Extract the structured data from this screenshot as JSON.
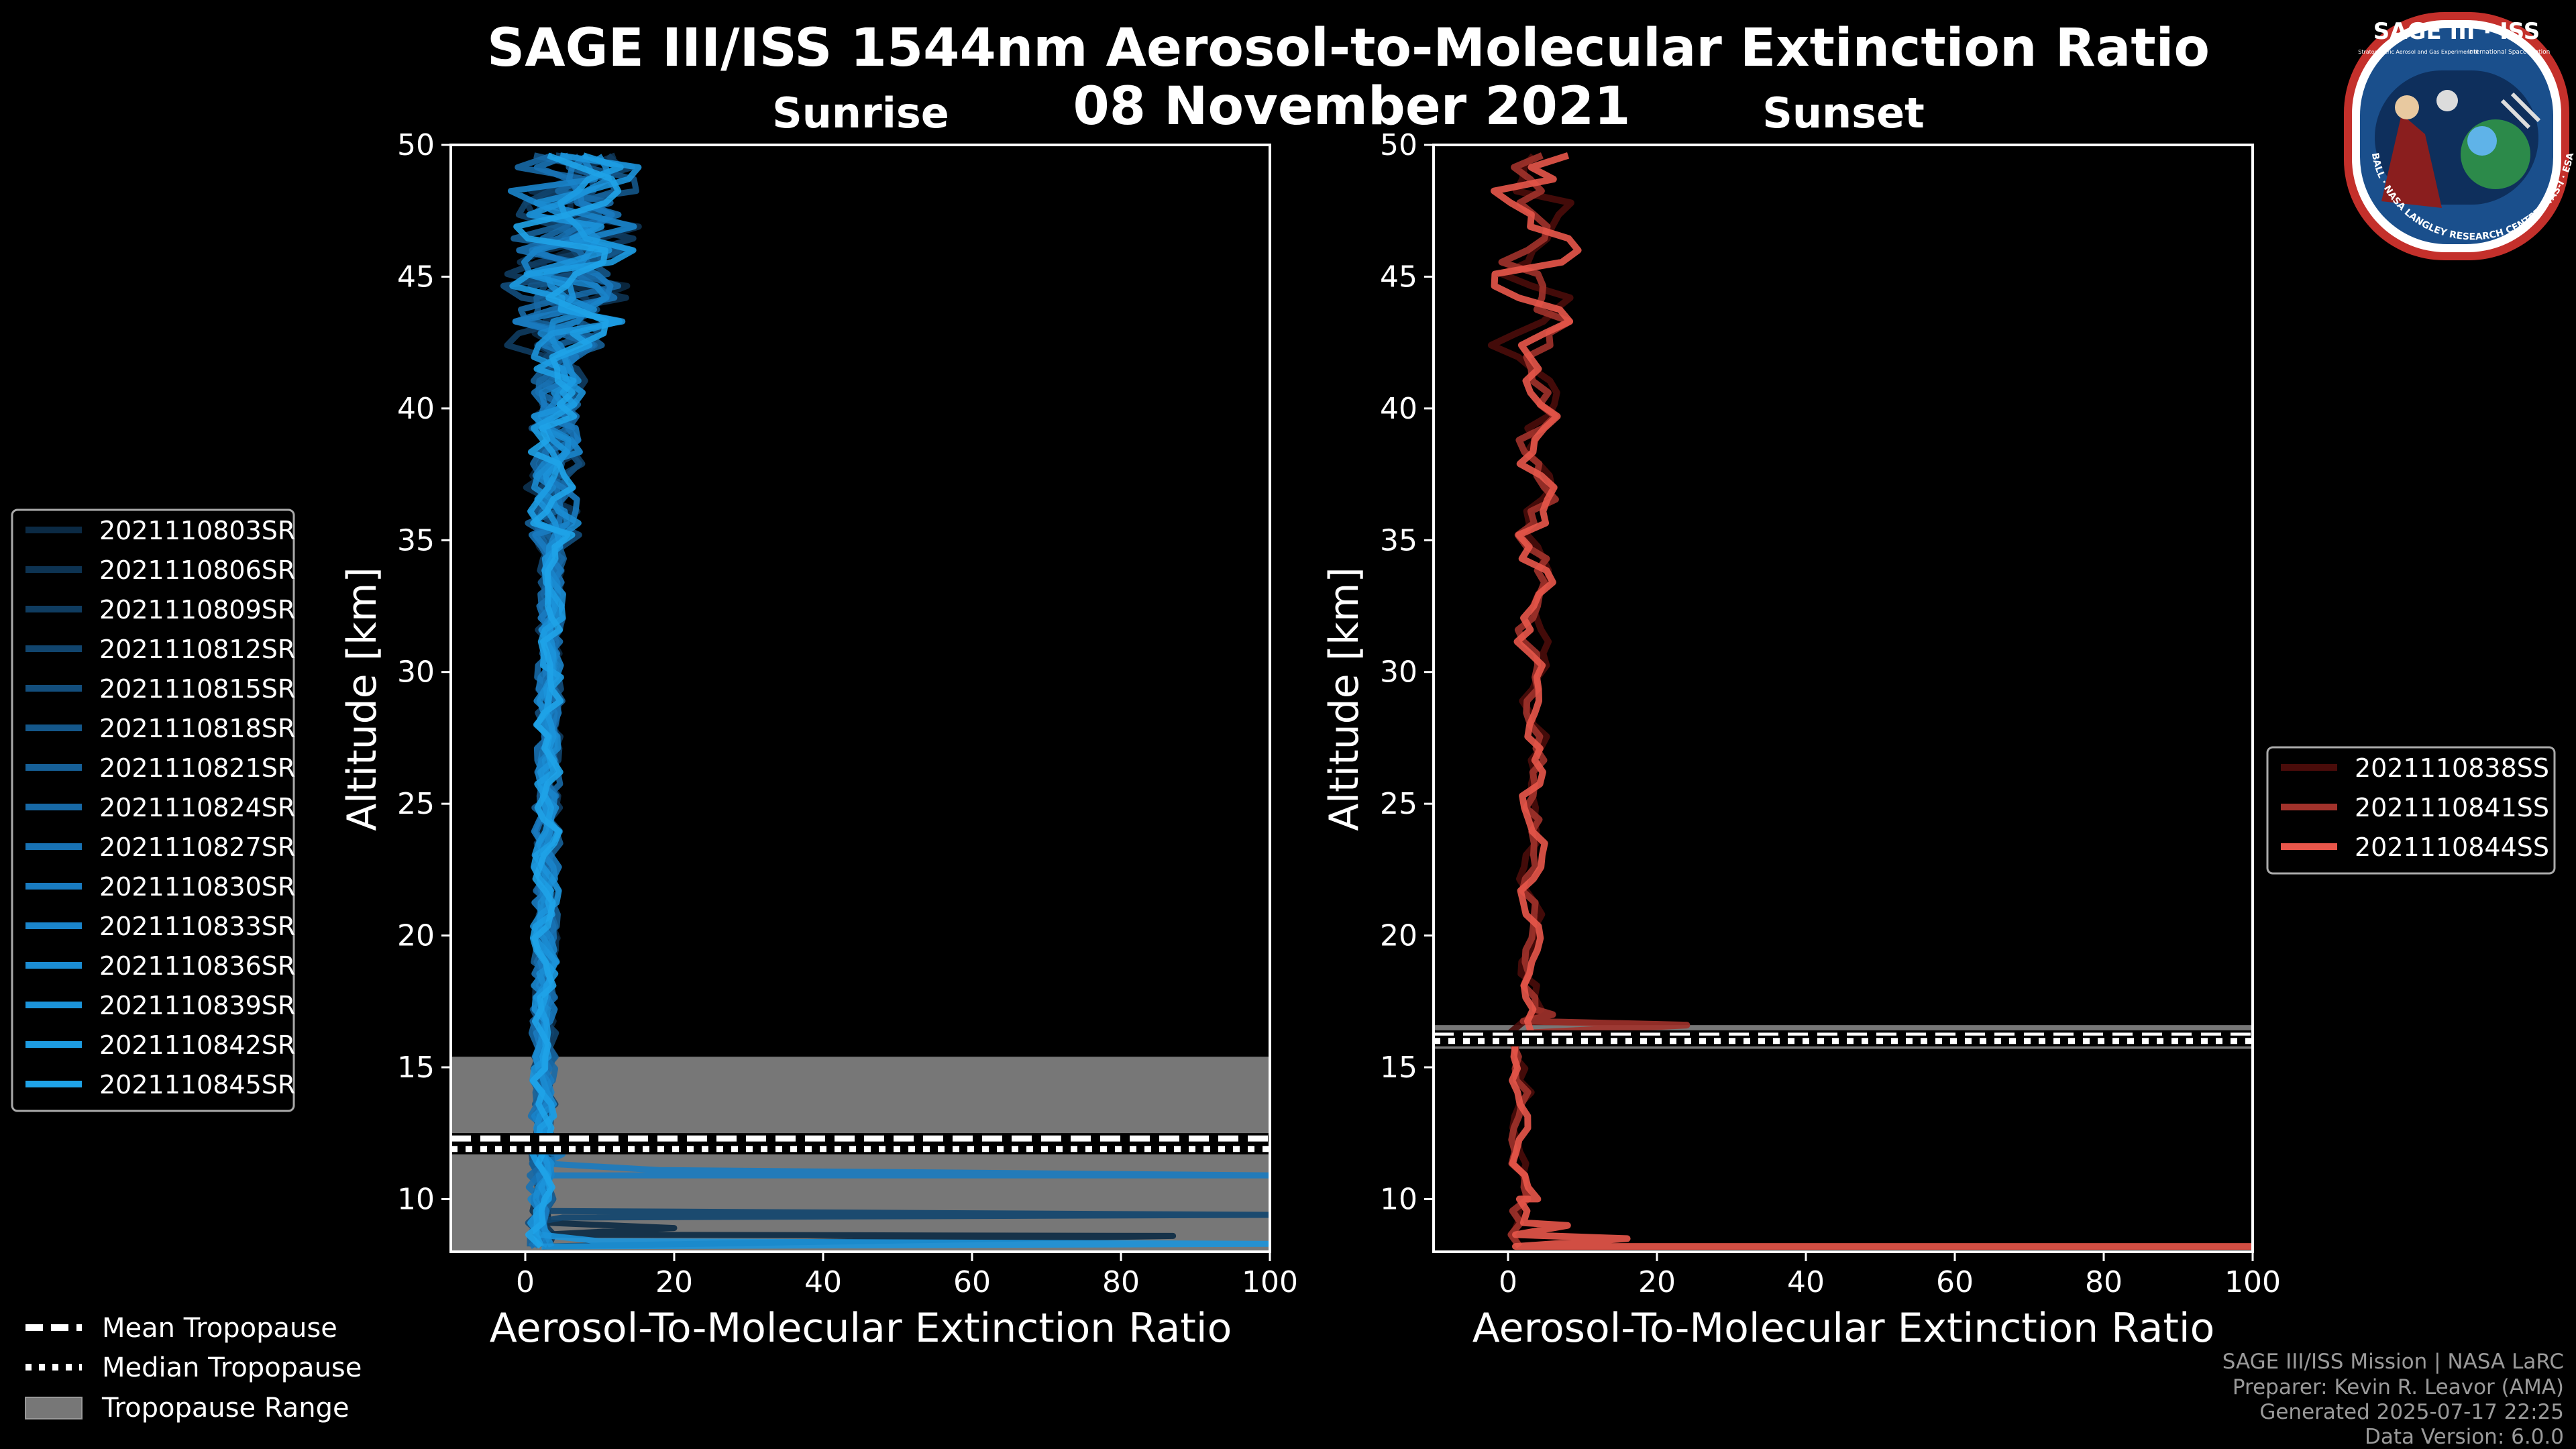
{
  "title": "SAGE III/ISS 1544nm Aerosol-to-Molecular Extinction Ratio",
  "date": "08 November 2021",
  "logo": {
    "name": "SAGE III · ISS",
    "subtitle_left": "Stratospheric Aerosol and Gas Experiment III",
    "subtitle_right": "International Space Station",
    "ring_text": "BALL · NASA LANGLEY RESEARCH CENTER · TAS-I · ESA"
  },
  "colors": {
    "background": "#000000",
    "sunrise_palette": [
      "#0b2a44",
      "#0f3a5e",
      "#135080",
      "#176aa6",
      "#1a86cc",
      "#1fa0e6"
    ],
    "sunset_palette": [
      "#4a0c0a",
      "#a1322b",
      "#e8564a"
    ],
    "tropopause_range": "#777777"
  },
  "legend_tropopause": {
    "mean": "Mean Tropopause",
    "median": "Median Tropopause",
    "range": "Tropopause Range"
  },
  "footer": {
    "line1": "SAGE III/ISS Mission | NASA LaRC",
    "line2": "Preparer: Kevin R. Leavor (AMA)",
    "line3": "Generated 2025-07-17 22:25",
    "line4": "Data Version: 6.0.0"
  },
  "chart_data": [
    {
      "type": "line",
      "title": "Sunrise",
      "xlabel": "Aerosol-To-Molecular Extinction Ratio",
      "ylabel": "Altitude [km]",
      "xlim": [
        -10,
        100
      ],
      "ylim": [
        8,
        50
      ],
      "xticks": [
        0,
        20,
        40,
        60,
        80,
        100
      ],
      "yticks": [
        10,
        15,
        20,
        25,
        30,
        35,
        40,
        45,
        50
      ],
      "tropopause": {
        "min": 8,
        "max": 15.4,
        "mean": 12.3,
        "median": 11.9
      },
      "series": [
        {
          "name": "2021110803SR",
          "color": "#0b2a44"
        },
        {
          "name": "2021110806SR",
          "color": "#0d3352"
        },
        {
          "name": "2021110809SR",
          "color": "#0f3c60"
        },
        {
          "name": "2021110812SR",
          "color": "#11456e"
        },
        {
          "name": "2021110815SR",
          "color": "#134e7c"
        },
        {
          "name": "2021110818SR",
          "color": "#14578a"
        },
        {
          "name": "2021110821SR",
          "color": "#166098"
        },
        {
          "name": "2021110824SR",
          "color": "#1769a6"
        },
        {
          "name": "2021110827SR",
          "color": "#1872b4"
        },
        {
          "name": "2021110830SR",
          "color": "#197bc0"
        },
        {
          "name": "2021110833SR",
          "color": "#1a84ca"
        },
        {
          "name": "2021110836SR",
          "color": "#1b8cd2"
        },
        {
          "name": "2021110839SR",
          "color": "#1c94da"
        },
        {
          "name": "2021110842SR",
          "color": "#1d9ce2"
        },
        {
          "name": "2021110845SR",
          "color": "#1fa3e8"
        }
      ]
    },
    {
      "type": "line",
      "title": "Sunset",
      "xlabel": "Aerosol-To-Molecular Extinction Ratio",
      "ylabel": "Altitude [km]",
      "xlim": [
        -10,
        100
      ],
      "ylim": [
        8,
        50
      ],
      "xticks": [
        0,
        20,
        40,
        60,
        80,
        100
      ],
      "yticks": [
        10,
        15,
        20,
        25,
        30,
        35,
        40,
        45,
        50
      ],
      "tropopause": {
        "min": 15.7,
        "max": 16.6,
        "mean": 16.2,
        "median": 16.0
      },
      "series": [
        {
          "name": "2021110838SS",
          "color": "#4a0c0a"
        },
        {
          "name": "2021110841SS",
          "color": "#a1322b"
        },
        {
          "name": "2021110844SS",
          "color": "#e8564a"
        }
      ]
    }
  ]
}
